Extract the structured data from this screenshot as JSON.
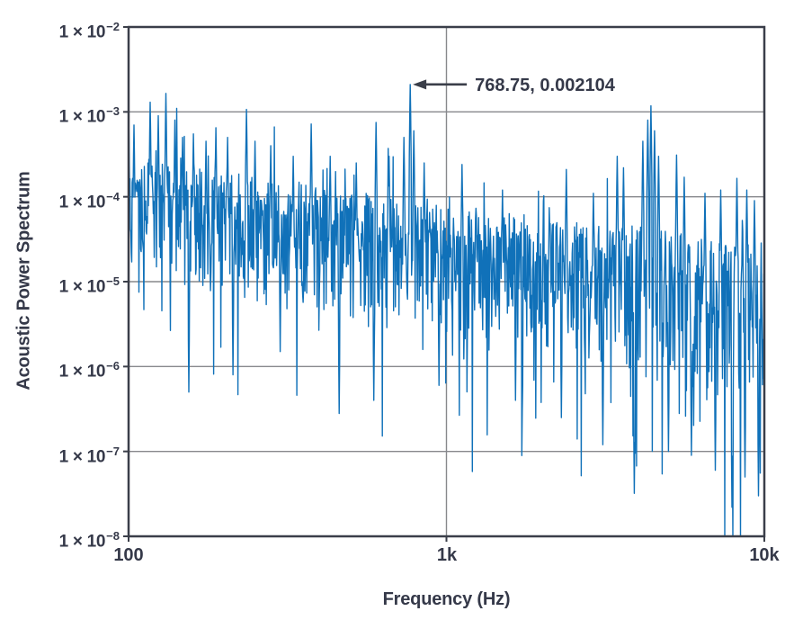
{
  "colors": {
    "series_blue": "#1071B9",
    "axis_dark": "#3A3E49",
    "text_dark": "#353949",
    "gridline_gray": "#87888C",
    "background": "#FFFFFF"
  },
  "chart_data": {
    "type": "line",
    "title": "",
    "xlabel": "Frequency (Hz)",
    "ylabel": "Acoustic Power Spectrum",
    "x_scale": "log",
    "y_scale": "log",
    "xlim": [
      100,
      10000
    ],
    "ylim": [
      1e-08,
      0.01
    ],
    "grid": {
      "horizontal": [
        0.001,
        0.0001,
        1e-05,
        1e-06,
        1e-07
      ],
      "vertical": [
        1000
      ]
    },
    "legend": "none",
    "x_ticks": [
      {
        "value": 100,
        "label": "100"
      },
      {
        "value": 1000,
        "label": "1k"
      },
      {
        "value": 10000,
        "label": "10k"
      }
    ],
    "y_ticks": [
      {
        "value": 0.01,
        "base": "1 × 10",
        "exp": "−2"
      },
      {
        "value": 0.001,
        "base": "1 × 10",
        "exp": "−3"
      },
      {
        "value": 0.0001,
        "base": "1 × 10",
        "exp": "−4"
      },
      {
        "value": 1e-05,
        "base": "1 × 10",
        "exp": "−5"
      },
      {
        "value": 1e-06,
        "base": "1 × 10",
        "exp": "−6"
      },
      {
        "value": 1e-07,
        "base": "1 × 10",
        "exp": "−7"
      },
      {
        "value": 1e-08,
        "base": "1 × 10",
        "exp": "−8"
      }
    ],
    "annotation": {
      "label": "768.75, 0.002104",
      "x": 768.75,
      "y": 0.002104
    },
    "series": [
      {
        "name": "acoustic-power-spectrum",
        "color": "#1071B9",
        "n_points": 1414,
        "seed": 7,
        "top_envelope_log10": [
          [
            2.0,
            -3.55
          ],
          [
            2.4,
            -3.78
          ],
          [
            2.9,
            -4.05
          ],
          [
            3.4,
            -4.3
          ],
          [
            4.0,
            -4.55
          ]
        ],
        "bottom_envelope_log10": [
          [
            2.0,
            -5.15
          ],
          [
            2.5,
            -5.35
          ],
          [
            3.0,
            -5.7
          ],
          [
            3.5,
            -6.1
          ],
          [
            4.0,
            -6.6
          ]
        ],
        "spike_up_probability": 0.015,
        "spike_down_probability": 0.03,
        "peaks": [
          {
            "f": 100,
            "v": 0.00105
          },
          {
            "f": 104,
            "v": 0.0007
          },
          {
            "f": 117,
            "v": 0.0013
          },
          {
            "f": 124,
            "v": 0.0009
          },
          {
            "f": 131,
            "v": 0.00165
          },
          {
            "f": 140,
            "v": 0.0008
          },
          {
            "f": 148,
            "v": 0.0005
          },
          {
            "f": 160,
            "v": 0.00055
          },
          {
            "f": 175,
            "v": 0.00045
          },
          {
            "f": 188,
            "v": 0.00065
          },
          {
            "f": 205,
            "v": 0.0005
          },
          {
            "f": 235,
            "v": 0.00107
          },
          {
            "f": 250,
            "v": 0.00045
          },
          {
            "f": 280,
            "v": 0.0004
          },
          {
            "f": 330,
            "v": 0.0003
          },
          {
            "f": 375,
            "v": 0.00072
          },
          {
            "f": 430,
            "v": 0.0003
          },
          {
            "f": 520,
            "v": 0.00025
          },
          {
            "f": 600,
            "v": 0.00075
          },
          {
            "f": 660,
            "v": 0.0003
          },
          {
            "f": 735,
            "v": 0.0005
          },
          {
            "f": 768.75,
            "v": 0.002104
          },
          {
            "f": 790,
            "v": 0.0006
          },
          {
            "f": 850,
            "v": 0.00025
          },
          {
            "f": 1120,
            "v": 0.00024
          },
          {
            "f": 1500,
            "v": 0.00012
          },
          {
            "f": 2380,
            "v": 0.00021
          },
          {
            "f": 2900,
            "v": 0.00011
          },
          {
            "f": 3450,
            "v": 0.0003
          },
          {
            "f": 3600,
            "v": 0.00022
          },
          {
            "f": 4150,
            "v": 0.00045
          },
          {
            "f": 4300,
            "v": 0.0008
          },
          {
            "f": 4400,
            "v": 0.00118
          },
          {
            "f": 4520,
            "v": 0.0006
          },
          {
            "f": 4650,
            "v": 0.0003
          },
          {
            "f": 5300,
            "v": 0.00031
          },
          {
            "f": 5600,
            "v": 0.00017
          },
          {
            "f": 6500,
            "v": 0.00011
          },
          {
            "f": 7300,
            "v": 0.00012
          },
          {
            "f": 8200,
            "v": 0.000165
          },
          {
            "f": 8800,
            "v": 0.00012
          },
          {
            "f": 9300,
            "v": 9e-05
          }
        ],
        "dips": [
          {
            "f": 155,
            "v": 5e-07
          },
          {
            "f": 213,
            "v": 8e-07
          },
          {
            "f": 300,
            "v": 1.5e-06
          },
          {
            "f": 460,
            "v": 2.8e-07
          },
          {
            "f": 590,
            "v": 4e-07
          },
          {
            "f": 947,
            "v": 6e-07
          },
          {
            "f": 1650,
            "v": 4e-07
          },
          {
            "f": 2300,
            "v": 2.5e-07
          },
          {
            "f": 3100,
            "v": 1.2e-07
          },
          {
            "f": 3900,
            "v": 3.2e-08
          },
          {
            "f": 5000,
            "v": 1e-07
          },
          {
            "f": 5900,
            "v": 9e-08
          },
          {
            "f": 7000,
            "v": 6e-08
          },
          {
            "f": 7900,
            "v": 2.2e-08
          },
          {
            "f": 8700,
            "v": 5e-08
          },
          {
            "f": 9600,
            "v": 3e-08
          }
        ]
      }
    ]
  }
}
